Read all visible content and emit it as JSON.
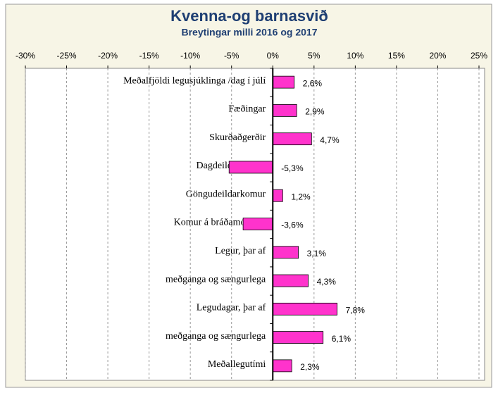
{
  "chart_data": {
    "type": "hbar",
    "title": "Kvenna-og barnasvið",
    "subtitle": "Breytingar milli 2016 og 2017",
    "categories": [
      "Meðalfjöldi legusjúklinga /dag í júlí",
      "Fæðingar",
      "Skurðaðgerðir",
      "Dagdeildarkomur",
      "Göngudeildarkomur",
      "Komur á bráðamóttöku",
      "Legur, þar af",
      "meðganga og sængurlega",
      "Legudagar, þar af",
      "meðganga og sængurlega",
      "Meðallegutími"
    ],
    "values": [
      2.6,
      2.9,
      4.7,
      -5.3,
      1.2,
      -3.6,
      3.1,
      4.3,
      7.8,
      6.1,
      2.3
    ],
    "value_labels": [
      "2,6%",
      "2,9%",
      "4,7%",
      "-5,3%",
      "1,2%",
      "-3,6%",
      "3,1%",
      "4,3%",
      "7,8%",
      "6,1%",
      "2,3%"
    ],
    "color": "#ff33cc",
    "xlim": [
      -30,
      25
    ],
    "xticks": [
      {
        "value": -30,
        "label": "-30%"
      },
      {
        "value": -25,
        "label": "-25%"
      },
      {
        "value": -20,
        "label": "-20%"
      },
      {
        "value": -15,
        "label": "-15%"
      },
      {
        "value": -10,
        "label": "-10%"
      },
      {
        "value": -5,
        "label": "-5%"
      },
      {
        "value": 0,
        "label": "0%"
      },
      {
        "value": 5,
        "label": "5%"
      },
      {
        "value": 10,
        "label": "10%"
      },
      {
        "value": 15,
        "label": "15%"
      },
      {
        "value": 20,
        "label": "20%"
      },
      {
        "value": 25,
        "label": "25%"
      }
    ],
    "grid": true
  }
}
